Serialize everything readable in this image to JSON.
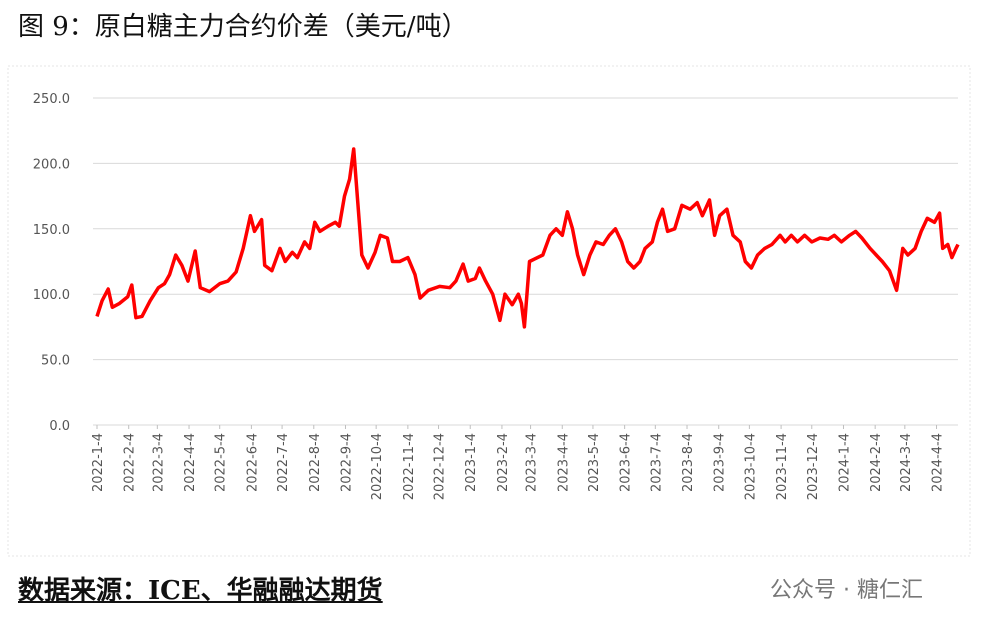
{
  "chart_data": {
    "type": "line",
    "title": "图 9：原白糖主力合约价差（美元/吨）",
    "color": "#ff0000",
    "ylim": [
      0,
      250
    ],
    "yticks": [
      {
        "value": 0,
        "label": "0.0"
      },
      {
        "value": 50,
        "label": "50.0"
      },
      {
        "value": 100,
        "label": "100.0"
      },
      {
        "value": 150,
        "label": "150.0"
      },
      {
        "value": 200,
        "label": "200.0"
      },
      {
        "value": 250,
        "label": "250.0"
      }
    ],
    "grid": true,
    "xlim": [
      "2022-1-4",
      "2024-4-25"
    ],
    "xticks": [
      "2022-1-4",
      "2022-2-4",
      "2022-3-4",
      "2022-4-4",
      "2022-5-4",
      "2022-6-4",
      "2022-7-4",
      "2022-8-4",
      "2022-9-4",
      "2022-10-4",
      "2022-11-4",
      "2022-12-4",
      "2023-1-4",
      "2023-2-4",
      "2023-3-4",
      "2023-4-4",
      "2023-5-4",
      "2023-6-4",
      "2023-7-4",
      "2023-8-4",
      "2023-9-4",
      "2023-10-4",
      "2023-11-4",
      "2023-12-4",
      "2024-1-4",
      "2024-2-4",
      "2024-3-4",
      "2024-4-4"
    ],
    "x": [
      "2022-1-4",
      "2022-1-9",
      "2022-1-15",
      "2022-1-19",
      "2022-1-26",
      "2022-2-3",
      "2022-2-7",
      "2022-2-11",
      "2022-2-17",
      "2022-2-25",
      "2022-3-5",
      "2022-3-11",
      "2022-3-16",
      "2022-3-22",
      "2022-3-28",
      "2022-4-3",
      "2022-4-10",
      "2022-4-15",
      "2022-4-24",
      "2022-5-4",
      "2022-5-12",
      "2022-5-20",
      "2022-5-27",
      "2022-6-3",
      "2022-6-7",
      "2022-6-14",
      "2022-6-17",
      "2022-6-24",
      "2022-7-2",
      "2022-7-7",
      "2022-7-14",
      "2022-7-19",
      "2022-7-26",
      "2022-7-31",
      "2022-8-5",
      "2022-8-10",
      "2022-8-18",
      "2022-8-25",
      "2022-8-29",
      "2022-9-3",
      "2022-9-8",
      "2022-9-12",
      "2022-9-16",
      "2022-9-20",
      "2022-9-26",
      "2022-10-3",
      "2022-10-8",
      "2022-10-15",
      "2022-10-20",
      "2022-10-27",
      "2022-11-4",
      "2022-11-11",
      "2022-11-16",
      "2022-11-24",
      "2022-12-5",
      "2022-12-15",
      "2022-12-21",
      "2022-12-28",
      "2023-1-2",
      "2023-1-9",
      "2023-1-13",
      "2023-1-19",
      "2023-1-26",
      "2023-2-2",
      "2023-2-7",
      "2023-2-14",
      "2023-2-20",
      "2023-2-23",
      "2023-2-26",
      "2023-3-3",
      "2023-3-8",
      "2023-3-16",
      "2023-3-23",
      "2023-3-29",
      "2023-4-4",
      "2023-4-9",
      "2023-4-14",
      "2023-4-19",
      "2023-4-25",
      "2023-5-1",
      "2023-5-7",
      "2023-5-14",
      "2023-5-20",
      "2023-5-26",
      "2023-6-1",
      "2023-6-7",
      "2023-6-13",
      "2023-6-19",
      "2023-6-24",
      "2023-7-1",
      "2023-7-6",
      "2023-7-11",
      "2023-7-16",
      "2023-7-23",
      "2023-7-30",
      "2023-8-7",
      "2023-8-14",
      "2023-8-19",
      "2023-8-26",
      "2023-8-31",
      "2023-9-5",
      "2023-9-12",
      "2023-9-18",
      "2023-9-25",
      "2023-9-30",
      "2023-10-6",
      "2023-10-12",
      "2023-10-19",
      "2023-10-26",
      "2023-11-3",
      "2023-11-8",
      "2023-11-14",
      "2023-11-20",
      "2023-11-27",
      "2023-12-4",
      "2023-12-12",
      "2023-12-20",
      "2023-12-26",
      "2024-1-2",
      "2024-1-10",
      "2024-1-16",
      "2024-1-22",
      "2024-1-30",
      "2024-2-5",
      "2024-2-11",
      "2024-2-18",
      "2024-2-25",
      "2024-3-2",
      "2024-3-7",
      "2024-3-14",
      "2024-3-20",
      "2024-3-26",
      "2024-4-2",
      "2024-4-7",
      "2024-4-10",
      "2024-4-15",
      "2024-4-19",
      "2024-4-23",
      "2024-4-25"
    ],
    "values": [
      83,
      95,
      104,
      90,
      93,
      98,
      107,
      82,
      83,
      95,
      105,
      108,
      115,
      130,
      122,
      110,
      133,
      105,
      102,
      108,
      110,
      117,
      135,
      160,
      148,
      157,
      122,
      118,
      135,
      125,
      132,
      128,
      140,
      135,
      155,
      148,
      152,
      155,
      152,
      175,
      188,
      211,
      170,
      130,
      120,
      132,
      145,
      143,
      125,
      125,
      128,
      115,
      97,
      103,
      106,
      105,
      110,
      123,
      110,
      112,
      120,
      110,
      100,
      80,
      100,
      92,
      100,
      93,
      75,
      125,
      127,
      130,
      145,
      150,
      145,
      163,
      150,
      130,
      115,
      130,
      140,
      138,
      145,
      150,
      140,
      125,
      120,
      125,
      135,
      140,
      155,
      165,
      148,
      150,
      168,
      165,
      170,
      160,
      172,
      145,
      160,
      165,
      145,
      140,
      125,
      120,
      130,
      135,
      138,
      145,
      140,
      145,
      140,
      145,
      140,
      143,
      142,
      145,
      140,
      145,
      148,
      143,
      135,
      130,
      125,
      118,
      103,
      135,
      130,
      135,
      148,
      158,
      155,
      162,
      135,
      138,
      128,
      135,
      138
    ]
  },
  "source": "数据来源：ICE、华融融达期货",
  "watermark": "公众号 · 糖仁汇"
}
